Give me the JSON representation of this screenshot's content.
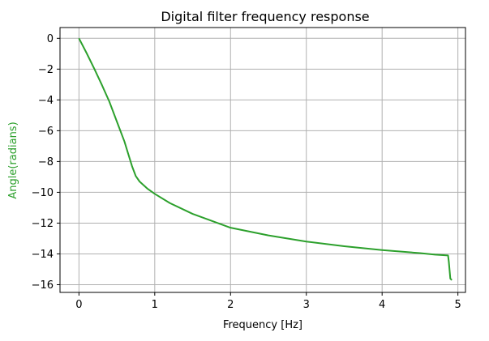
{
  "chart_data": {
    "type": "line",
    "title": "Digital filter frequency response",
    "xlabel": "Frequency [Hz]",
    "ylabel": "Angle(radians)",
    "xlim": [
      -0.25,
      5.1
    ],
    "ylim": [
      -16.5,
      0.7
    ],
    "xticks": [
      0,
      1,
      2,
      3,
      4,
      5
    ],
    "yticks": [
      0,
      -2,
      -4,
      -6,
      -8,
      -10,
      -12,
      -14,
      -16
    ],
    "xtick_labels": [
      "0",
      "1",
      "2",
      "3",
      "4",
      "5"
    ],
    "ytick_labels": [
      "0",
      "−2",
      "−4",
      "−6",
      "−8",
      "−10",
      "−12",
      "−14",
      "−16"
    ],
    "grid": true,
    "series": [
      {
        "color": "#2ca02c",
        "x": [
          0,
          0.1,
          0.2,
          0.3,
          0.4,
          0.5,
          0.6,
          0.65,
          0.7,
          0.75,
          0.8,
          0.9,
          1.0,
          1.2,
          1.5,
          2.0,
          2.5,
          3.0,
          3.5,
          4.0,
          4.5,
          4.7,
          4.87,
          4.88,
          4.9,
          4.92
        ],
        "y": [
          0,
          -0.95,
          -1.95,
          -3.0,
          -4.1,
          -5.4,
          -6.7,
          -7.5,
          -8.3,
          -8.95,
          -9.3,
          -9.75,
          -10.1,
          -10.7,
          -11.4,
          -12.3,
          -12.8,
          -13.2,
          -13.5,
          -13.75,
          -13.95,
          -14.05,
          -14.1,
          -14.5,
          -15.6,
          -15.7
        ]
      }
    ]
  }
}
